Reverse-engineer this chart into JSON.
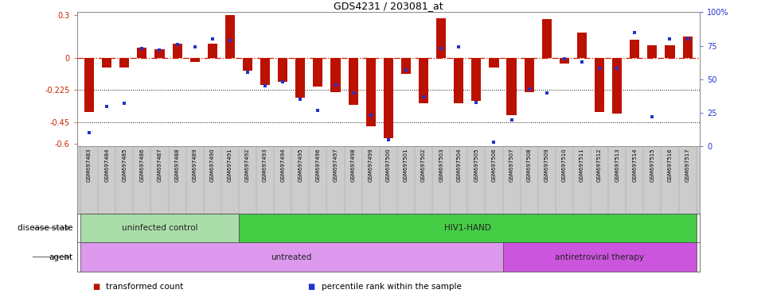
{
  "title": "GDS4231 / 203081_at",
  "samples": [
    "GSM697483",
    "GSM697484",
    "GSM697485",
    "GSM697486",
    "GSM697487",
    "GSM697488",
    "GSM697489",
    "GSM697490",
    "GSM697491",
    "GSM697492",
    "GSM697493",
    "GSM697494",
    "GSM697495",
    "GSM697496",
    "GSM697497",
    "GSM697498",
    "GSM697499",
    "GSM697500",
    "GSM697501",
    "GSM697502",
    "GSM697503",
    "GSM697504",
    "GSM697505",
    "GSM697506",
    "GSM697507",
    "GSM697508",
    "GSM697509",
    "GSM697510",
    "GSM697511",
    "GSM697512",
    "GSM697513",
    "GSM697514",
    "GSM697515",
    "GSM697516",
    "GSM697517"
  ],
  "bar_values": [
    -0.38,
    -0.07,
    -0.07,
    0.07,
    0.06,
    0.1,
    -0.03,
    0.1,
    0.3,
    -0.09,
    -0.19,
    -0.17,
    -0.28,
    -0.2,
    -0.24,
    -0.33,
    -0.48,
    -0.56,
    -0.11,
    -0.32,
    0.28,
    -0.32,
    -0.3,
    -0.07,
    -0.4,
    -0.24,
    0.27,
    -0.04,
    0.18,
    -0.38,
    -0.39,
    0.13,
    0.09,
    0.09,
    0.15
  ],
  "dot_pct": [
    10,
    30,
    32,
    73,
    72,
    76,
    74,
    80,
    79,
    55,
    45,
    48,
    35,
    27,
    46,
    40,
    23,
    5,
    57,
    37,
    73,
    74,
    33,
    3,
    20,
    43,
    40,
    65,
    63,
    58,
    58,
    85,
    22,
    80,
    80
  ],
  "ylim_left": [
    -0.62,
    0.32
  ],
  "ylim_right": [
    0,
    100
  ],
  "yticks_left": [
    -0.6,
    -0.45,
    -0.225,
    0.0,
    0.3
  ],
  "ytick_labels_left": [
    "-0.6",
    "-0.45",
    "-0.225",
    "0",
    "0.3"
  ],
  "yticks_right": [
    0,
    25,
    50,
    75,
    100
  ],
  "ytick_labels_right": [
    "0",
    "25",
    "50",
    "75",
    "100%"
  ],
  "hlines": [
    -0.225,
    -0.45
  ],
  "bar_color": "#bb1100",
  "dot_color": "#2233cc",
  "zero_line_color": "#cc2200",
  "hline_color": "#111111",
  "xtick_bg_color": "#cccccc",
  "disease_state_groups": [
    {
      "label": "uninfected control",
      "start": 0,
      "end": 9,
      "color": "#aaddaa"
    },
    {
      "label": "HIV1-HAND",
      "start": 9,
      "end": 35,
      "color": "#44cc44"
    }
  ],
  "agent_groups": [
    {
      "label": "untreated",
      "start": 0,
      "end": 24,
      "color": "#dd99ee"
    },
    {
      "label": "antiretroviral therapy",
      "start": 24,
      "end": 35,
      "color": "#cc55dd"
    }
  ],
  "disease_state_label": "disease state",
  "agent_label": "agent",
  "legend_items": [
    {
      "label": "transformed count",
      "color": "#bb1100"
    },
    {
      "label": "percentile rank within the sample",
      "color": "#2233cc"
    }
  ],
  "bg_color": "#ffffff"
}
